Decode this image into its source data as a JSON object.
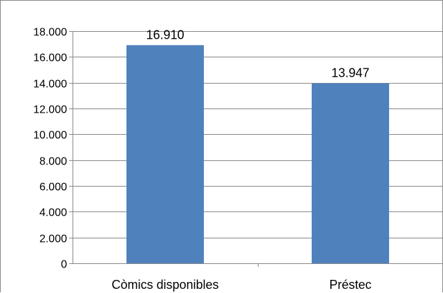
{
  "chart_data": {
    "type": "bar",
    "title": "",
    "xlabel": "",
    "ylabel": "",
    "categories": [
      "Còmics disponibles",
      "Préstec"
    ],
    "values": [
      16910,
      13947
    ],
    "data_labels": [
      "16.910",
      "13.947"
    ],
    "ylim": [
      0,
      18000
    ],
    "yticks": [
      0,
      2000,
      4000,
      6000,
      8000,
      10000,
      12000,
      14000,
      16000,
      18000
    ],
    "ytick_labels": [
      "0",
      "2.000",
      "4.000",
      "6.000",
      "8.000",
      "10.000",
      "12.000",
      "14.000",
      "16.000",
      "18.000"
    ],
    "grid": true,
    "legend": "none",
    "bar_color": "#4F81BD",
    "grid_color": "#868686"
  }
}
